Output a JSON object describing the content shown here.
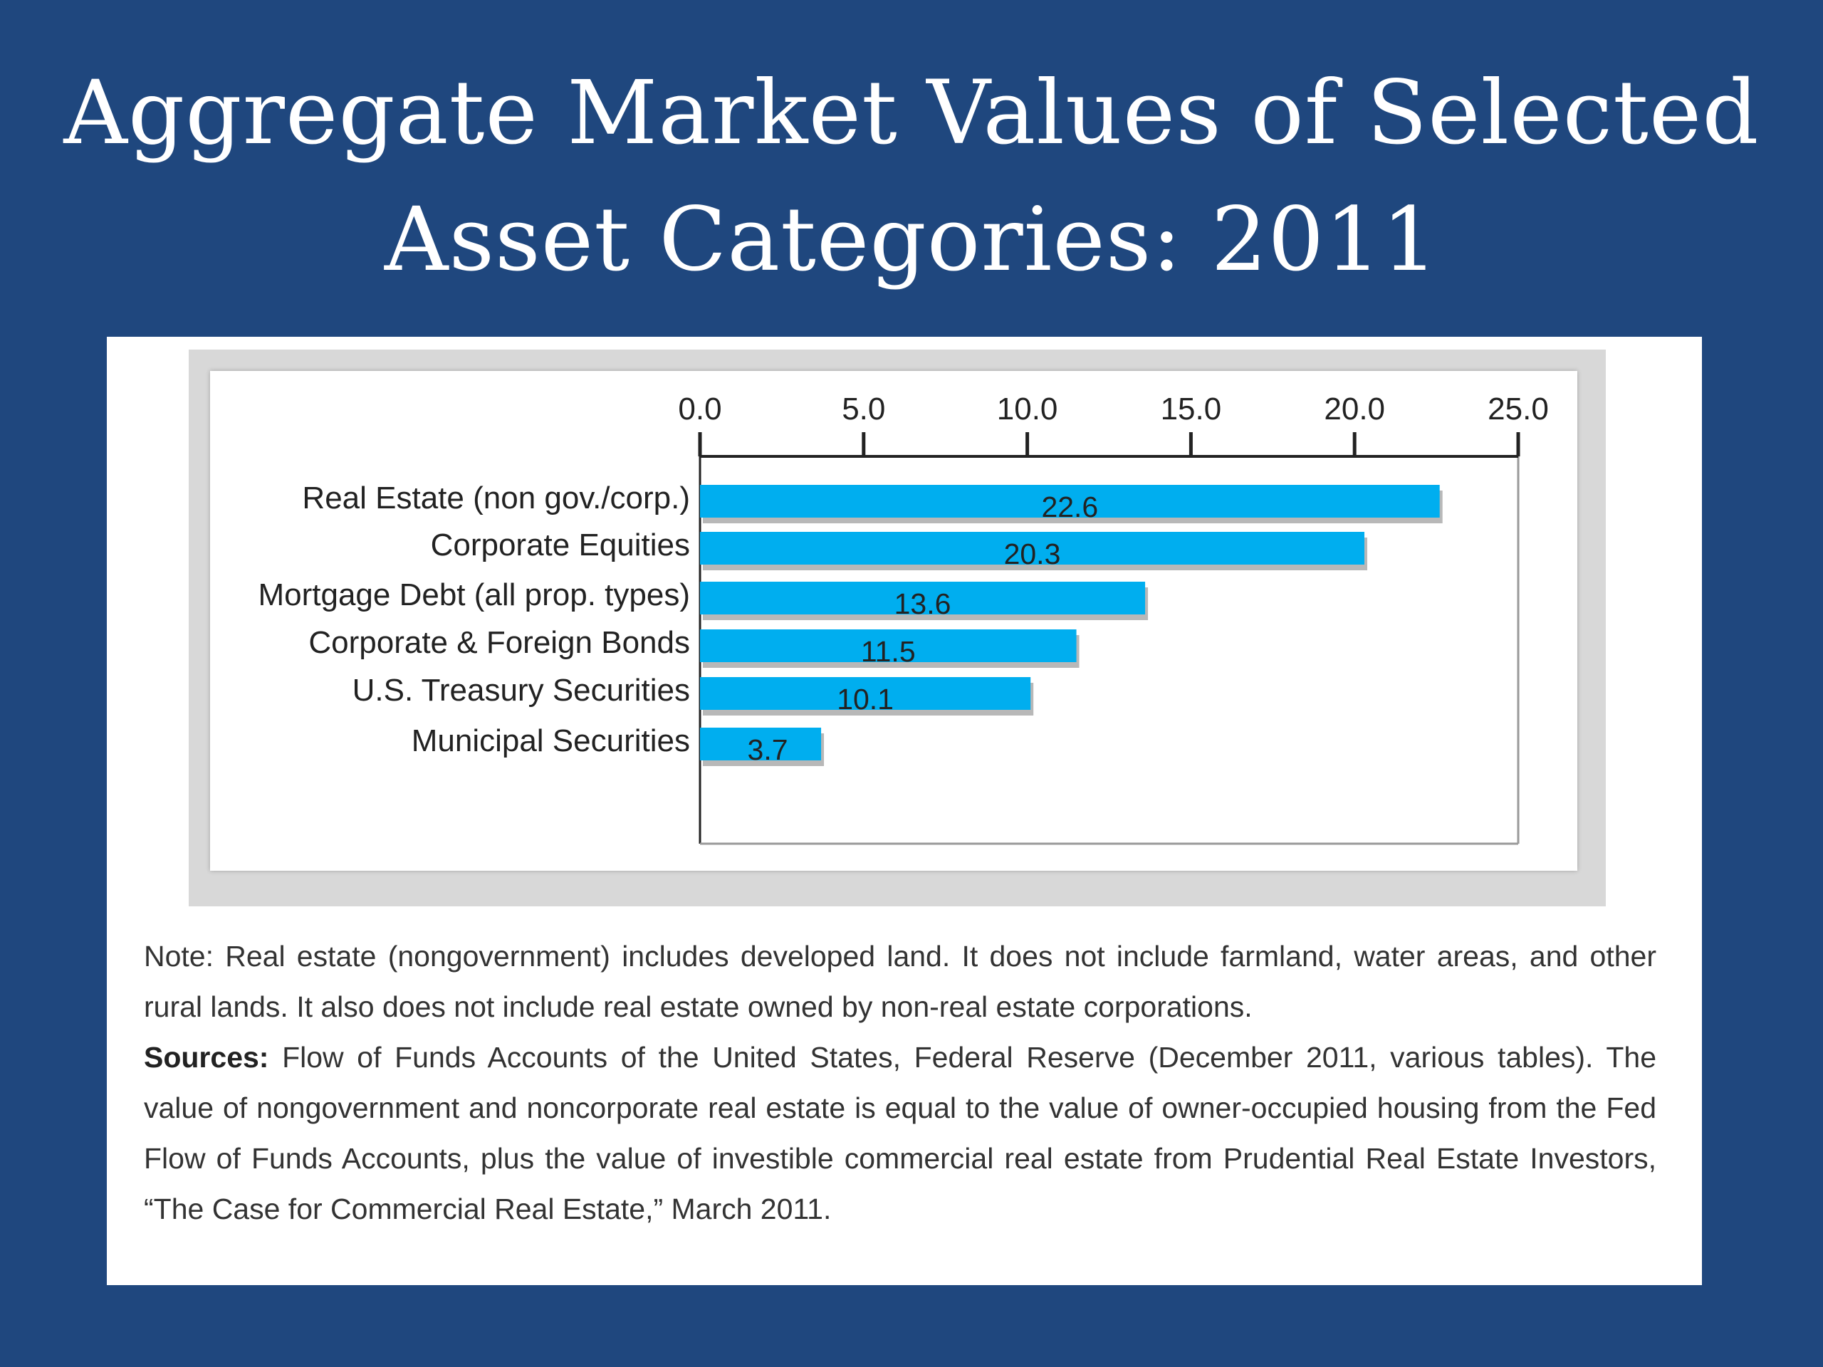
{
  "slide": {
    "title_line1": "Aggregate Market Values of Selected",
    "title_line2": "Asset Categories: 2011"
  },
  "colors": {
    "background": "#1f477e",
    "bar": "#00aeef",
    "axis": "#222222"
  },
  "chart_data": {
    "type": "bar",
    "orientation": "horizontal",
    "categories": [
      "Real Estate (non gov./corp.)",
      "Corporate Equities",
      "Mortgage Debt (all prop. types)",
      "Corporate & Foreign Bonds",
      "U.S. Treasury Securities",
      "Municipal Securities"
    ],
    "values": [
      22.6,
      20.3,
      13.6,
      11.5,
      10.1,
      3.7
    ],
    "value_labels": [
      "22.6",
      "20.3",
      "13.6",
      "11.5",
      "10.1",
      "3.7"
    ],
    "xlim": [
      0,
      25
    ],
    "ticks": [
      0,
      5,
      10,
      15,
      20,
      25
    ],
    "tick_labels": [
      "0.0",
      "5.0",
      "10.0",
      "15.0",
      "20.0",
      "25.0"
    ],
    "axis_position": "top",
    "grid": false,
    "legend": "none"
  },
  "footnote": {
    "note": "Note: Real estate (nongovernment) includes developed land. It does not include farmland, water areas, and other rural lands. It also does not include real estate owned by non-real estate corporations.",
    "sources_label": "Sources:",
    "sources_text": " Flow of Funds Accounts of the United States, Federal Reserve (December 2011, various tables). The value of nongovernment and noncorporate real estate is equal to the value of owner-occupied housing from the Fed Flow of Funds Accounts, plus the value of investible commercial real estate from Prudential Real Estate Investors, “The Case for Commercial Real Estate,” March 2011."
  }
}
